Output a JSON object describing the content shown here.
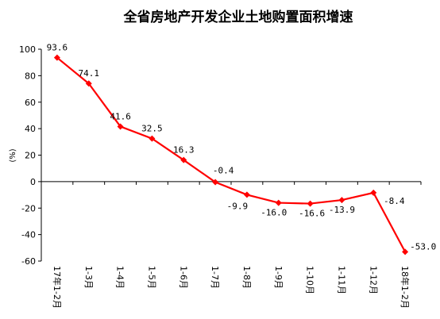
{
  "chart_data": {
    "type": "line",
    "title": "全省房地产开发企业土地购置面积增速",
    "ylabel": "(%)",
    "xlabel": "",
    "ylim": [
      -60,
      100
    ],
    "yticks": [
      -60,
      -40,
      -20,
      0,
      20,
      40,
      60,
      80,
      100
    ],
    "grid": false,
    "categories": [
      "17年1-2月",
      "1-3月",
      "1-4月",
      "1-5月",
      "1-6月",
      "1-7月",
      "1-8月",
      "1-9月",
      "1-10月",
      "1-11月",
      "1-12月",
      "18年1-2月"
    ],
    "series": [
      {
        "values": [
          93.6,
          74.1,
          41.6,
          32.5,
          16.3,
          -0.4,
          -9.9,
          -16.0,
          -16.6,
          -13.9,
          -8.4,
          -53.0
        ],
        "labels": [
          "93.6",
          "74.1",
          "41.6",
          "32.5",
          "16.3",
          "-0.4",
          "-9.9",
          "-16.0",
          "-16.6",
          "-13.9",
          "-8.4",
          "-53.0"
        ],
        "color": "#ff0000"
      }
    ]
  }
}
